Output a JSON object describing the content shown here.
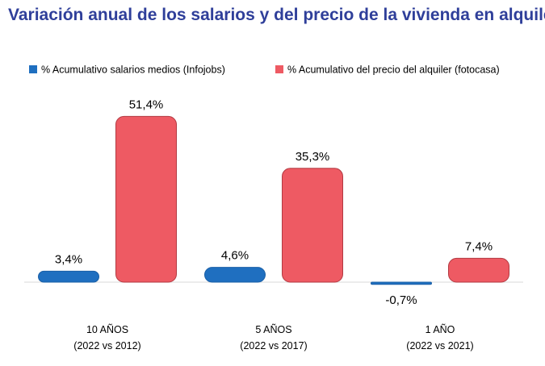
{
  "chart_data": {
    "type": "bar",
    "title": "Variación anual de los salarios y del precio de la vivienda en alquiler",
    "categories": [
      [
        "10 AÑOS",
        "(2022 vs 2012)"
      ],
      [
        "5 AÑOS",
        "(2022 vs 2017)"
      ],
      [
        "1 AÑO",
        "(2022 vs 2021)"
      ]
    ],
    "series": [
      {
        "name": "% Acumulativo salarios medios (Infojobs)",
        "color": "#1f6fc0",
        "values": [
          3.4,
          4.6,
          -0.7
        ],
        "labels": [
          "3,4%",
          "4,6%",
          "-0,7%"
        ]
      },
      {
        "name": "% Acumulativo del precio del alquiler (fotocasa)",
        "color": "#ee5a63",
        "values": [
          51.4,
          35.3,
          7.4
        ],
        "labels": [
          "51,4%",
          "35,3%",
          "7,4%"
        ]
      }
    ],
    "legend_position": "top",
    "grid": false
  }
}
